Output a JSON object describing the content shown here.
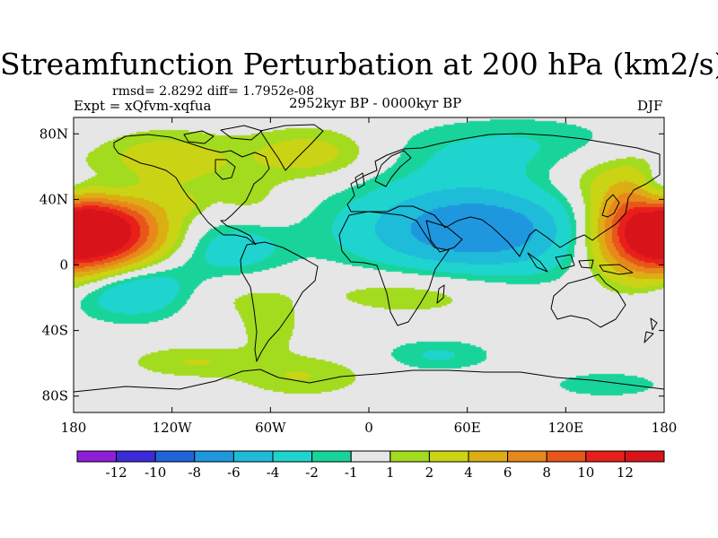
{
  "chart_data": {
    "type": "heatmap",
    "title": "Streamfunction Perturbation at 200 hPa (km2/s)",
    "left_subtitle_1": "rmsd= 2.8292 diff= 1.7952e-08",
    "left_subtitle_2": "Expt = xQfvm-xqfua",
    "center_subtitle": "2952kyr BP - 0000kyr BP",
    "right_subtitle": "DJF",
    "x_ticks": [
      {
        "value": -180,
        "label": "180"
      },
      {
        "value": -120,
        "label": "120W"
      },
      {
        "value": -60,
        "label": "60W"
      },
      {
        "value": 0,
        "label": "0"
      },
      {
        "value": 60,
        "label": "60E"
      },
      {
        "value": 120,
        "label": "120E"
      },
      {
        "value": 180,
        "label": "180"
      }
    ],
    "y_ticks": [
      {
        "value": 80,
        "label": "80N"
      },
      {
        "value": 40,
        "label": "40N"
      },
      {
        "value": 0,
        "label": "0"
      },
      {
        "value": -40,
        "label": "40S"
      },
      {
        "value": -80,
        "label": "80S"
      }
    ],
    "xlim": [
      -180,
      180
    ],
    "ylim": [
      -90,
      90
    ],
    "levels": [
      -12,
      -10,
      -8,
      -6,
      -4,
      -2,
      -1,
      1,
      2,
      4,
      6,
      8,
      10,
      12
    ],
    "level_labels": [
      "-12",
      "-10",
      "-8",
      "-6",
      "-4",
      "-2",
      "-1",
      "1",
      "2",
      "4",
      "6",
      "8",
      "10",
      "12"
    ],
    "palette": [
      "#8e1fd9",
      "#3d2ad9",
      "#1f64d9",
      "#1f97df",
      "#1fbcd9",
      "#1fd4cf",
      "#19d49a",
      "#e6e6e6",
      "#a3db1f",
      "#cbd414",
      "#dcae14",
      "#e8871a",
      "#e8561a",
      "#e81f1a",
      "#d8141a"
    ],
    "centers": [
      {
        "lon": -160,
        "lat": 20,
        "amp": 13,
        "rx": 26,
        "ry": 19
      },
      {
        "lon": 168,
        "lat": 20,
        "amp": 12,
        "rx": 24,
        "ry": 19
      },
      {
        "lon": -162,
        "lat": 46,
        "amp": -5,
        "rx": 19,
        "ry": 11
      },
      {
        "lon": 176,
        "lat": 44,
        "amp": -4,
        "rx": 9,
        "ry": 11
      },
      {
        "lon": -145,
        "lat": -13,
        "amp": -6,
        "rx": 29,
        "ry": 13
      },
      {
        "lon": -35,
        "lat": 68,
        "amp": 3,
        "rx": 28,
        "ry": 11
      },
      {
        "lon": -125,
        "lat": 65,
        "amp": 3,
        "rx": 30,
        "ry": 12
      },
      {
        "lon": -75,
        "lat": 35,
        "amp": 2,
        "rx": 20,
        "ry": 14
      },
      {
        "lon": -82,
        "lat": 11,
        "amp": -3.5,
        "rx": 23,
        "ry": 16
      },
      {
        "lon": -88,
        "lat": -16,
        "amp": 2,
        "rx": 30,
        "ry": 12
      },
      {
        "lon": -108,
        "lat": -59,
        "amp": 2,
        "rx": 28,
        "ry": 7
      },
      {
        "lon": -40,
        "lat": -68,
        "amp": 2,
        "rx": 28,
        "ry": 9
      },
      {
        "lon": -60,
        "lat": -40,
        "amp": 1.5,
        "rx": 13,
        "ry": 10
      },
      {
        "lon": 65,
        "lat": 22,
        "amp": -8,
        "rx": 52,
        "ry": 20
      },
      {
        "lon": 95,
        "lat": 70,
        "amp": -2.5,
        "rx": 58,
        "ry": 14
      },
      {
        "lon": 142,
        "lat": 55,
        "amp": 2.5,
        "rx": 36,
        "ry": 14
      },
      {
        "lon": 30,
        "lat": -16,
        "amp": 2.2,
        "rx": 42,
        "ry": 11
      },
      {
        "lon": 42,
        "lat": -55,
        "amp": -2.2,
        "rx": 24,
        "ry": 7
      },
      {
        "lon": 145,
        "lat": -73,
        "amp": -1.8,
        "rx": 26,
        "ry": 6
      },
      {
        "lon": -112,
        "lat": 37,
        "amp": 1.2,
        "rx": 8,
        "ry": 5
      }
    ]
  }
}
